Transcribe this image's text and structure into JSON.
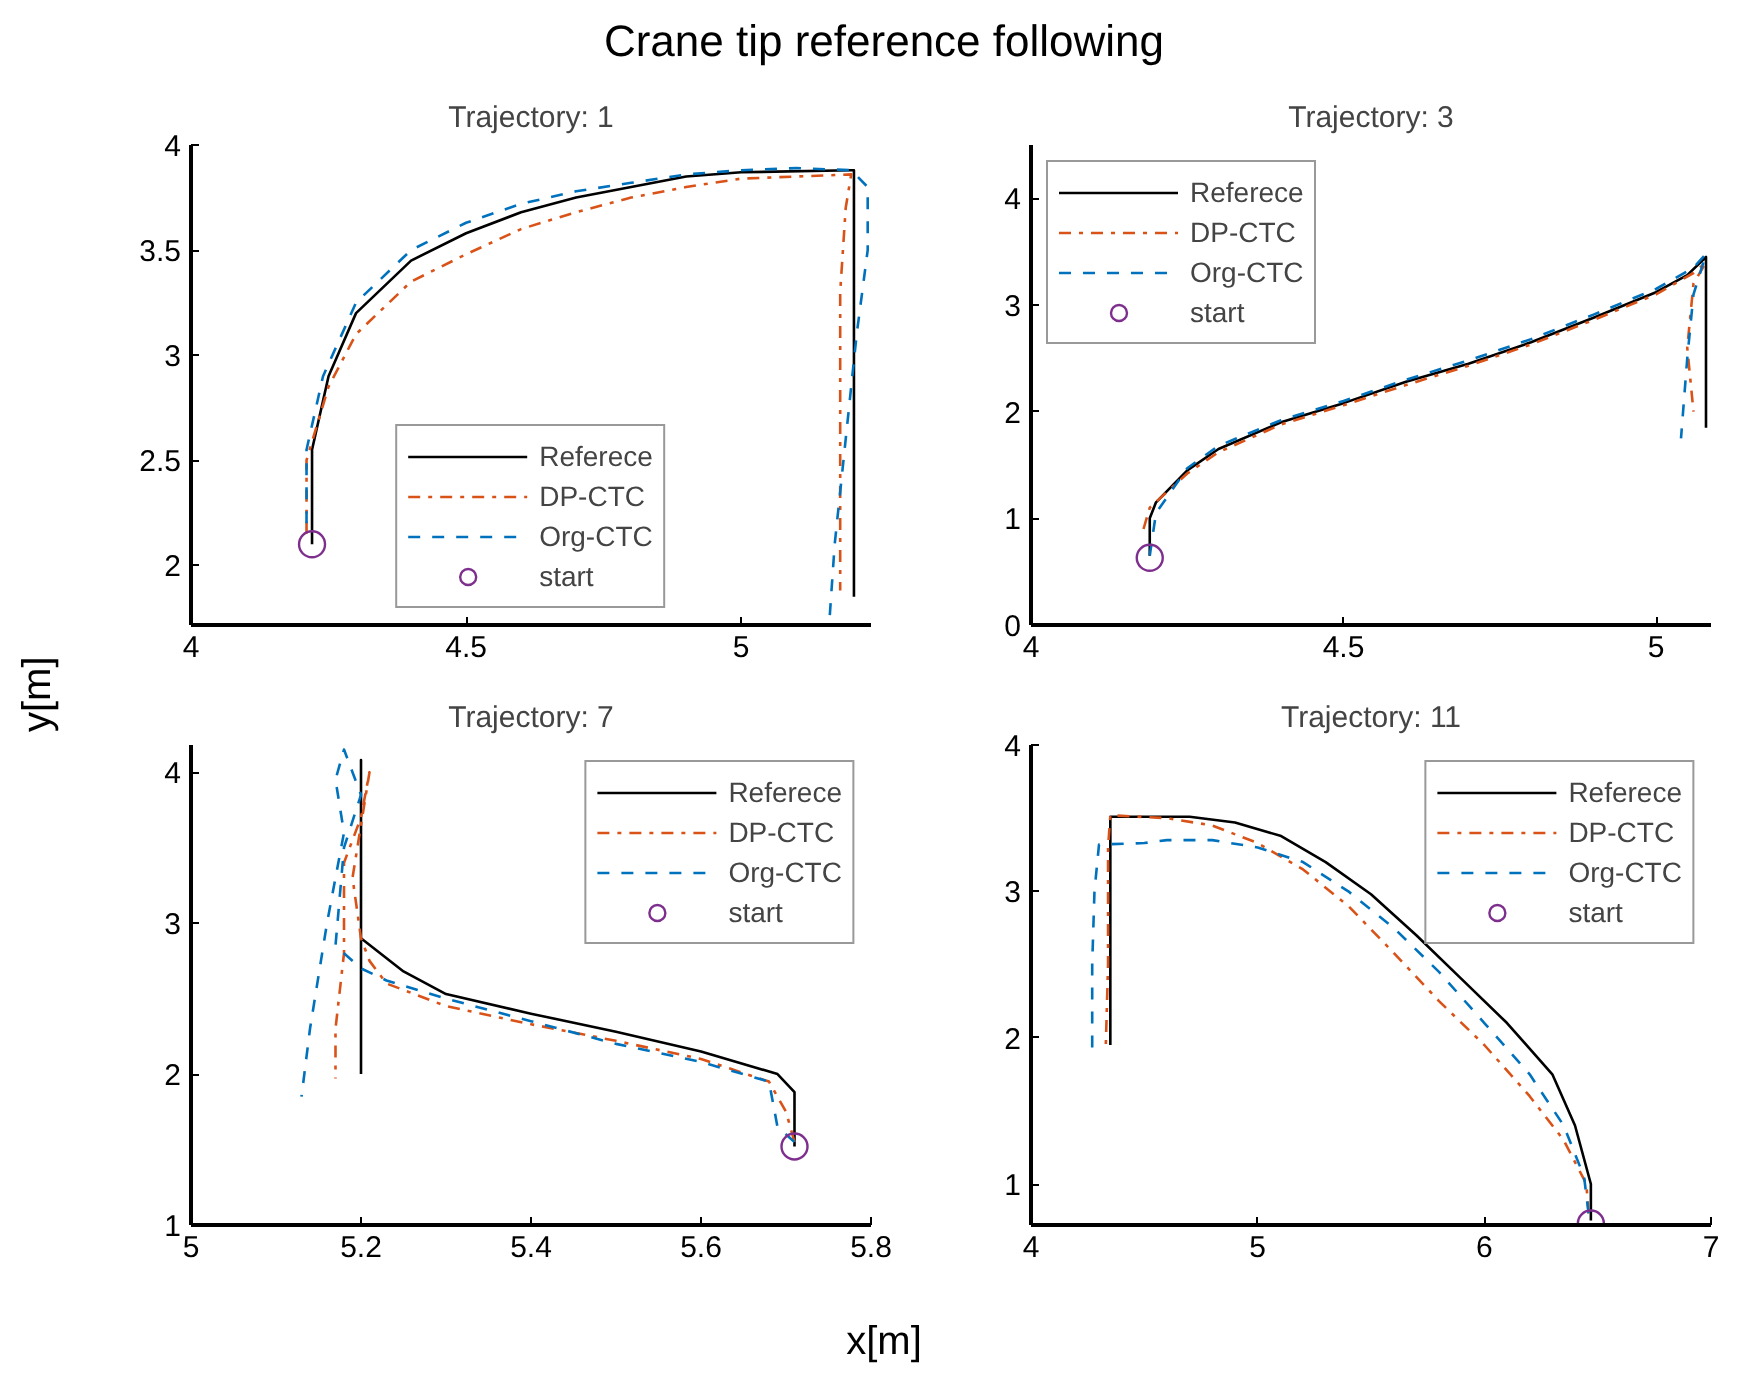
{
  "chart_data": [
    {
      "type": "line",
      "title": "Trajectory: 1",
      "subtitle": "Crane tip reference following",
      "ylabel": "y[m]",
      "xlim": [
        4,
        5.236
      ],
      "ylim": [
        1.716,
        4
      ],
      "xticks": [
        4,
        4.5,
        5
      ],
      "yticks": [
        2,
        2.5,
        3,
        3.5,
        4
      ],
      "grid": false,
      "legend": "bottom",
      "series": [
        {
          "name": "Referece",
          "color": "#000000",
          "line_style": "solid",
          "x": [
            4.22,
            4.22,
            4.25,
            4.3,
            4.4,
            4.5,
            4.6,
            4.7,
            4.8,
            4.9,
            5.0,
            5.2,
            5.205,
            5.205
          ],
          "values": [
            2.1,
            2.55,
            2.9,
            3.2,
            3.45,
            3.58,
            3.68,
            3.75,
            3.8,
            3.85,
            3.87,
            3.88,
            3.88,
            1.85
          ]
        },
        {
          "name": "DP-CTC",
          "color": "#d95319",
          "line_style": "dashdot",
          "x": [
            4.21,
            4.21,
            4.25,
            4.3,
            4.4,
            4.5,
            4.6,
            4.7,
            4.8,
            4.9,
            5.0,
            5.1,
            5.2,
            5.19,
            5.18,
            5.18,
            5.18
          ],
          "values": [
            2.15,
            2.5,
            2.85,
            3.1,
            3.35,
            3.48,
            3.6,
            3.68,
            3.75,
            3.8,
            3.84,
            3.85,
            3.86,
            3.7,
            3.3,
            2.5,
            1.88
          ]
        },
        {
          "name": "Org-CTC",
          "color": "#0072bd",
          "line_style": "dashed",
          "x": [
            4.21,
            4.21,
            4.24,
            4.3,
            4.4,
            4.5,
            4.6,
            4.7,
            4.8,
            4.9,
            5.0,
            5.1,
            5.2,
            5.23,
            5.23,
            5.21,
            5.19,
            5.17,
            5.16
          ],
          "values": [
            2.2,
            2.55,
            2.9,
            3.25,
            3.5,
            3.63,
            3.72,
            3.78,
            3.82,
            3.86,
            3.88,
            3.89,
            3.88,
            3.8,
            3.5,
            3.1,
            2.6,
            2.1,
            1.72
          ]
        },
        {
          "name": "start",
          "type": "scatter",
          "marker": "circle",
          "color": "#7e2f8e",
          "x": [
            4.22
          ],
          "values": [
            2.1
          ]
        }
      ]
    },
    {
      "type": "line",
      "title": "Trajectory: 3",
      "xlim": [
        4,
        5.088
      ],
      "ylim": [
        0,
        4.5
      ],
      "xticks": [
        4,
        4.5,
        5
      ],
      "yticks": [
        0,
        1,
        2,
        3,
        4
      ],
      "grid": false,
      "legend": "top left",
      "series": [
        {
          "name": "Referece",
          "color": "#000000",
          "line_style": "solid",
          "x": [
            4.19,
            4.19,
            4.2,
            4.25,
            4.3,
            4.4,
            4.5,
            4.6,
            4.7,
            4.8,
            4.9,
            5.0,
            5.05,
            5.08,
            5.08
          ],
          "values": [
            0.65,
            1.0,
            1.15,
            1.45,
            1.65,
            1.9,
            2.08,
            2.28,
            2.45,
            2.65,
            2.88,
            3.12,
            3.28,
            3.45,
            1.85
          ]
        },
        {
          "name": "DP-CTC",
          "color": "#d95319",
          "line_style": "dashdot",
          "x": [
            4.18,
            4.19,
            4.25,
            4.3,
            4.4,
            4.5,
            4.6,
            4.7,
            4.8,
            4.9,
            5.0,
            5.06,
            5.08,
            5.06,
            5.05,
            5.06
          ],
          "values": [
            0.9,
            1.1,
            1.42,
            1.62,
            1.88,
            2.06,
            2.25,
            2.43,
            2.63,
            2.86,
            3.1,
            3.3,
            3.4,
            3.2,
            2.6,
            2.0
          ]
        },
        {
          "name": "Org-CTC",
          "color": "#0072bd",
          "line_style": "dashed",
          "x": [
            4.19,
            4.2,
            4.25,
            4.3,
            4.4,
            4.5,
            4.6,
            4.7,
            4.8,
            4.9,
            5.0,
            5.06,
            5.08,
            5.06,
            5.05,
            5.04
          ],
          "values": [
            0.65,
            1.05,
            1.47,
            1.68,
            1.92,
            2.1,
            2.3,
            2.48,
            2.68,
            2.91,
            3.15,
            3.35,
            3.48,
            3.1,
            2.5,
            1.75
          ]
        },
        {
          "name": "start",
          "type": "scatter",
          "marker": "circle",
          "color": "#7e2f8e",
          "x": [
            4.19
          ],
          "values": [
            0.63
          ]
        }
      ]
    },
    {
      "type": "line",
      "title": "Trajectory: 7",
      "xlabel": "x[m]",
      "xlim": [
        5,
        5.8
      ],
      "ylim": [
        1,
        4.18
      ],
      "xticks": [
        5,
        5.2,
        5.4,
        5.6,
        5.8
      ],
      "yticks": [
        1,
        2,
        3,
        4
      ],
      "grid": false,
      "legend": "top right",
      "series": [
        {
          "name": "Referece",
          "color": "#000000",
          "line_style": "solid",
          "x": [
            5.71,
            5.71,
            5.69,
            5.6,
            5.5,
            5.4,
            5.3,
            5.25,
            5.2,
            5.2,
            5.2
          ],
          "values": [
            1.52,
            1.88,
            2.0,
            2.15,
            2.28,
            2.4,
            2.53,
            2.68,
            2.9,
            4.08,
            2.0
          ]
        },
        {
          "name": "DP-CTC",
          "color": "#d95319",
          "line_style": "dashdot",
          "x": [
            5.71,
            5.7,
            5.68,
            5.6,
            5.5,
            5.4,
            5.3,
            5.23,
            5.21,
            5.2,
            5.19,
            5.2,
            5.21,
            5.2,
            5.18,
            5.18,
            5.17,
            5.17
          ],
          "values": [
            1.55,
            1.75,
            1.95,
            2.1,
            2.22,
            2.33,
            2.45,
            2.6,
            2.75,
            2.9,
            3.3,
            3.65,
            4.0,
            3.7,
            3.4,
            2.8,
            2.3,
            1.97
          ]
        },
        {
          "name": "Org-CTC",
          "color": "#0072bd",
          "line_style": "dashed",
          "x": [
            5.71,
            5.69,
            5.68,
            5.6,
            5.5,
            5.4,
            5.3,
            5.23,
            5.2,
            5.17,
            5.18,
            5.2,
            5.18,
            5.17,
            5.18,
            5.16,
            5.14,
            5.13
          ],
          "values": [
            1.55,
            1.65,
            1.95,
            2.08,
            2.2,
            2.35,
            2.5,
            2.62,
            2.7,
            2.85,
            3.5,
            3.85,
            4.15,
            3.95,
            3.6,
            3.0,
            2.3,
            1.85
          ]
        },
        {
          "name": "start",
          "type": "scatter",
          "marker": "circle",
          "color": "#7e2f8e",
          "x": [
            5.71
          ],
          "values": [
            1.52
          ]
        }
      ]
    },
    {
      "type": "line",
      "title": "Trajectory: 11",
      "xlim": [
        4,
        7
      ],
      "ylim": [
        0.72,
        4
      ],
      "xticks": [
        4,
        5,
        6,
        7
      ],
      "yticks": [
        1,
        2,
        3,
        4
      ],
      "grid": false,
      "legend": "top right",
      "series": [
        {
          "name": "Referece",
          "color": "#000000",
          "line_style": "solid",
          "x": [
            6.47,
            6.47,
            6.4,
            6.3,
            6.1,
            5.9,
            5.7,
            5.5,
            5.3,
            5.1,
            4.9,
            4.7,
            4.35,
            4.35
          ],
          "values": [
            0.75,
            1.0,
            1.4,
            1.75,
            2.1,
            2.4,
            2.7,
            2.98,
            3.2,
            3.38,
            3.47,
            3.51,
            3.51,
            1.95
          ]
        },
        {
          "name": "DP-CTC",
          "color": "#d95319",
          "line_style": "dashdot",
          "x": [
            6.46,
            6.45,
            6.35,
            6.2,
            6.0,
            5.8,
            5.6,
            5.4,
            5.2,
            5.0,
            4.8,
            4.6,
            4.35,
            4.34,
            4.34,
            4.33
          ],
          "values": [
            0.8,
            1.0,
            1.3,
            1.6,
            1.95,
            2.25,
            2.58,
            2.9,
            3.15,
            3.33,
            3.45,
            3.5,
            3.52,
            3.3,
            2.5,
            1.95
          ]
        },
        {
          "name": "Org-CTC",
          "color": "#0072bd",
          "line_style": "dashed",
          "x": [
            6.46,
            6.44,
            6.35,
            6.2,
            6.0,
            5.8,
            5.6,
            5.4,
            5.2,
            5.0,
            4.8,
            4.6,
            4.5,
            4.3,
            4.28,
            4.27,
            4.27
          ],
          "values": [
            0.8,
            1.05,
            1.4,
            1.75,
            2.1,
            2.45,
            2.75,
            3.0,
            3.2,
            3.3,
            3.35,
            3.35,
            3.33,
            3.32,
            3.0,
            2.5,
            1.92
          ]
        },
        {
          "name": "start",
          "type": "scatter",
          "marker": "circle",
          "color": "#7e2f8e",
          "x": [
            6.47
          ],
          "values": [
            0.73
          ]
        }
      ]
    }
  ]
}
